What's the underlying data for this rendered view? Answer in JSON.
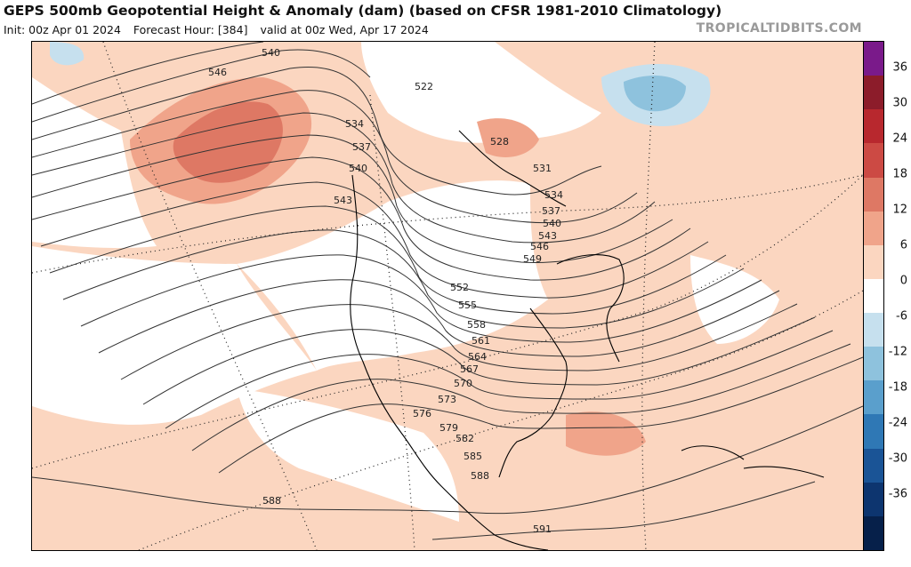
{
  "title": "GEPS 500mb Geopotential Height & Anomaly (dam) (based on CFSR 1981-2010 Climatology)",
  "init": "Init: 00z Apr 01 2024",
  "forecast_hour": "Forecast Hour: [384]",
  "valid": "valid at 00z Wed, Apr 17 2024",
  "brand": "TROPICALTIDBITS.COM",
  "colorbar": {
    "ticks": [
      "36",
      "30",
      "24",
      "18",
      "12",
      "6",
      "0",
      "-6",
      "-12",
      "-18",
      "-24",
      "-30",
      "-36"
    ],
    "colors": [
      "#7a1a8a",
      "#8c1c2a",
      "#b8282e",
      "#cc4a44",
      "#de7864",
      "#f0a48a",
      "#fbd6c0",
      "#ffffff",
      "#c6e0ee",
      "#8ec2dd",
      "#5a9fcc",
      "#2f78b5",
      "#1a5496",
      "#0d356f",
      "#06204a"
    ]
  },
  "contours": {
    "labels": [
      "540",
      "546",
      "522",
      "534",
      "537",
      "540",
      "543",
      "528",
      "531",
      "534",
      "537",
      "540",
      "543",
      "546",
      "549",
      "552",
      "555",
      "558",
      "561",
      "564",
      "567",
      "570",
      "573",
      "576",
      "579",
      "582",
      "585",
      "588",
      "588",
      "591"
    ]
  }
}
